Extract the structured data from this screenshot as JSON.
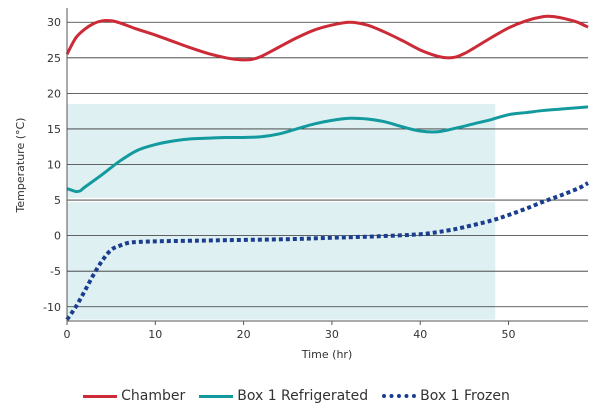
{
  "chart_data": {
    "type": "line",
    "title": "",
    "xlabel": "Time (hr)",
    "ylabel": "Temperature (°C)",
    "xlim": [
      0,
      59
    ],
    "ylim": [
      -12,
      32
    ],
    "x_ticks": [
      0,
      10,
      20,
      30,
      40,
      50
    ],
    "y_ticks": [
      -10,
      -5,
      0,
      5,
      10,
      15,
      20,
      25,
      30
    ],
    "grid": "horizontal",
    "legend_position": "bottom",
    "shaded_region": {
      "x": [
        0,
        48.5
      ],
      "bands": [
        [
          5.3,
          18.5
        ],
        [
          -11.8,
          4.7
        ]
      ],
      "color": "#def0f2"
    },
    "series": [
      {
        "name": "Chamber",
        "color": "#cc2a36",
        "style": "solid",
        "x": [
          0,
          1,
          2,
          3,
          4,
          5,
          6,
          8,
          10,
          12,
          14,
          16,
          18,
          19,
          20,
          21,
          22,
          24,
          26,
          28,
          30,
          32,
          34,
          36,
          38,
          40,
          42,
          43,
          44,
          45,
          46,
          48,
          50,
          52,
          54,
          55,
          56,
          57,
          58,
          59
        ],
        "values": [
          25.5,
          27.8,
          29.0,
          29.8,
          30.2,
          30.2,
          29.9,
          29.0,
          28.2,
          27.3,
          26.4,
          25.6,
          25.0,
          24.8,
          24.7,
          24.8,
          25.2,
          26.5,
          27.8,
          28.9,
          29.6,
          30.0,
          29.6,
          28.6,
          27.4,
          26.1,
          25.2,
          25.0,
          25.1,
          25.6,
          26.3,
          27.8,
          29.2,
          30.2,
          30.8,
          30.8,
          30.6,
          30.3,
          29.9,
          29.3
        ]
      },
      {
        "name": "Box 1 Refrigerated",
        "color": "#129a9e",
        "style": "solid",
        "x": [
          0,
          0.5,
          1,
          1.5,
          2,
          4,
          6,
          8,
          10,
          12,
          14,
          16,
          18,
          20,
          22,
          24,
          26,
          28,
          30,
          32,
          34,
          36,
          38,
          40,
          42,
          44,
          46,
          48,
          50,
          52,
          54,
          56,
          58,
          59
        ],
        "values": [
          6.6,
          6.4,
          6.2,
          6.3,
          6.8,
          8.6,
          10.5,
          12.0,
          12.8,
          13.3,
          13.6,
          13.7,
          13.8,
          13.8,
          13.9,
          14.3,
          15.0,
          15.7,
          16.2,
          16.5,
          16.4,
          16.0,
          15.3,
          14.7,
          14.6,
          15.1,
          15.7,
          16.3,
          17.0,
          17.3,
          17.6,
          17.8,
          18.0,
          18.1
        ]
      },
      {
        "name": "Box 1 Frozen",
        "color": "#1a3d8f",
        "style": "dotted",
        "x": [
          0,
          1,
          2,
          3,
          4,
          5,
          6,
          7,
          8,
          10,
          15,
          20,
          25,
          30,
          35,
          40,
          43,
          45,
          48,
          50,
          52,
          54,
          56,
          58,
          59
        ],
        "values": [
          -11.8,
          -10.0,
          -7.8,
          -5.5,
          -3.5,
          -2.0,
          -1.4,
          -1.0,
          -0.9,
          -0.8,
          -0.7,
          -0.6,
          -0.5,
          -0.3,
          -0.1,
          0.2,
          0.7,
          1.2,
          2.1,
          2.9,
          3.8,
          4.8,
          5.7,
          6.7,
          7.4
        ]
      }
    ]
  }
}
